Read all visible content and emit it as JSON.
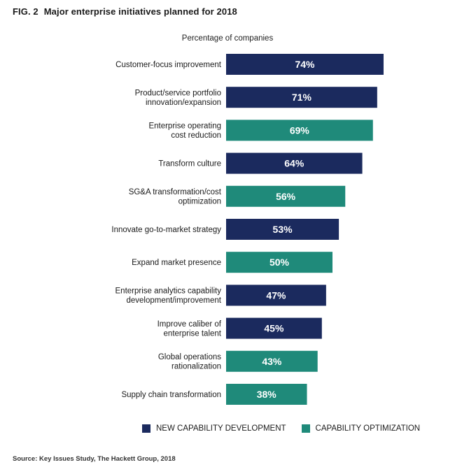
{
  "figure": {
    "number": "FIG. 2",
    "title": "Major enterprise initiatives planned for 2018",
    "subtitle": "Percentage of companies",
    "source": "Source: Key Issues Study, The Hackett Group, 2018"
  },
  "colors": {
    "new_capability": "#1b2a5e",
    "capability_optimization": "#1f8a7a"
  },
  "legend": [
    {
      "key": "new",
      "label": "NEW CAPABILITY DEVELOPMENT"
    },
    {
      "key": "opt",
      "label": "CAPABILITY OPTIMIZATION"
    }
  ],
  "chart_data": {
    "type": "bar",
    "orientation": "horizontal",
    "title": "Major enterprise initiatives planned for 2018",
    "xlabel": "Percentage of companies",
    "unit": "%",
    "xlim": [
      0,
      100
    ],
    "grid": false,
    "legend_position": "bottom",
    "bars": [
      {
        "label_lines": [
          "Customer-focus improvement"
        ],
        "value": 74,
        "series": "new",
        "value_label": "74%"
      },
      {
        "label_lines": [
          "Product/service portfolio",
          "innovation/expansion"
        ],
        "value": 71,
        "series": "new",
        "value_label": "71%"
      },
      {
        "label_lines": [
          "Enterprise operating",
          "cost reduction"
        ],
        "value": 69,
        "series": "opt",
        "value_label": "69%"
      },
      {
        "label_lines": [
          "Transform culture"
        ],
        "value": 64,
        "series": "new",
        "value_label": "64%"
      },
      {
        "label_lines": [
          "SG&A transformation/cost",
          "optimization"
        ],
        "value": 56,
        "series": "opt",
        "value_label": "56%"
      },
      {
        "label_lines": [
          "Innovate go-to-market strategy"
        ],
        "value": 53,
        "series": "new",
        "value_label": "53%"
      },
      {
        "label_lines": [
          "Expand market presence"
        ],
        "value": 50,
        "series": "opt",
        "value_label": "50%"
      },
      {
        "label_lines": [
          "Enterprise analytics capability",
          "development/improvement"
        ],
        "value": 47,
        "series": "new",
        "value_label": "47%"
      },
      {
        "label_lines": [
          "Improve caliber of",
          "enterprise talent"
        ],
        "value": 45,
        "series": "new",
        "value_label": "45%"
      },
      {
        "label_lines": [
          "Global operations",
          "rationalization"
        ],
        "value": 43,
        "series": "opt",
        "value_label": "43%"
      },
      {
        "label_lines": [
          "Supply chain transformation"
        ],
        "value": 38,
        "series": "opt",
        "value_label": "38%"
      }
    ]
  }
}
